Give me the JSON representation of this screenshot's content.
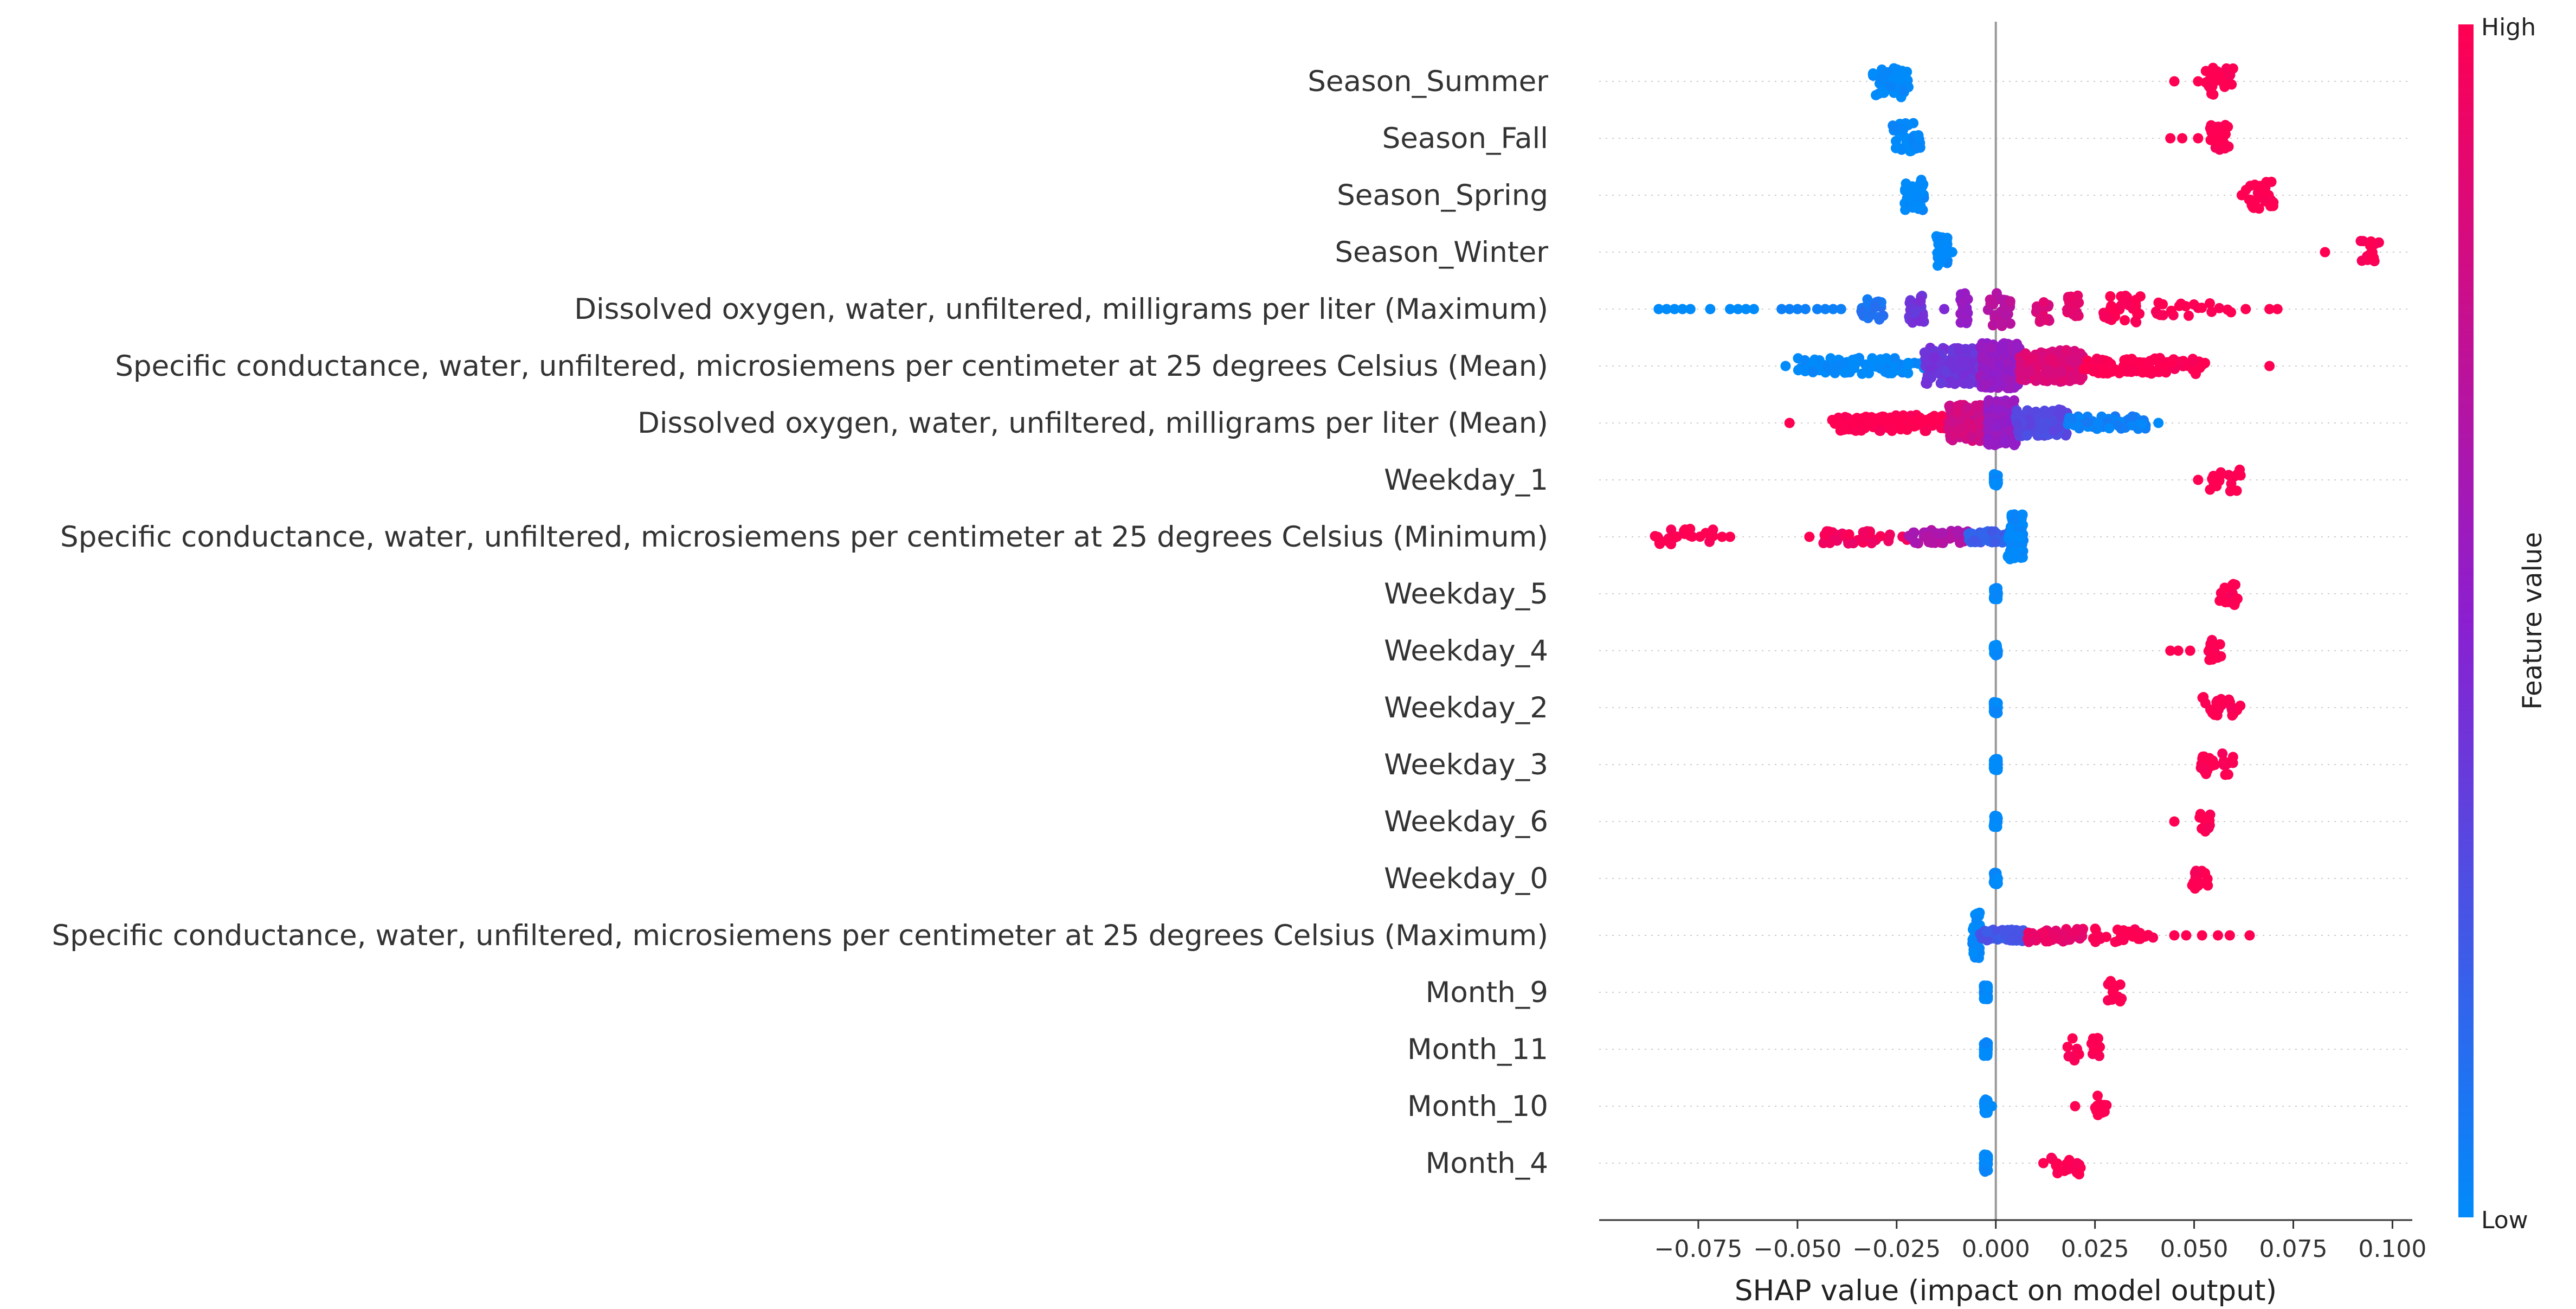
{
  "chart_data": {
    "type": "scatter",
    "subtype": "shap-beeswarm",
    "title": "",
    "xlabel": "SHAP value (impact on model output)",
    "xlim": [
      -0.1,
      0.105
    ],
    "xticks": [
      "−0.075",
      "−0.050",
      "−0.025",
      "0.000",
      "0.025",
      "0.050",
      "0.075",
      "0.100"
    ],
    "xtick_values": [
      -0.075,
      -0.05,
      -0.025,
      0,
      0.025,
      0.05,
      0.075,
      0.1
    ],
    "colorbar": {
      "title": "Feature value",
      "high_label": "High",
      "low_label": "Low",
      "low_color": "#008bfb",
      "high_color": "#ff0052"
    },
    "zero_line": true,
    "features": [
      {
        "name": "Season_Summer",
        "groups": [
          {
            "min": -0.031,
            "max": -0.022,
            "color": 0.0,
            "count": 45,
            "spread": 0.7
          },
          {
            "min": 0.052,
            "max": 0.06,
            "color": 1.0,
            "count": 30,
            "spread": 0.6
          }
        ],
        "points": [
          [
            0.045,
            1.0
          ],
          [
            0.051,
            1.0
          ]
        ]
      },
      {
        "name": "Season_Fall",
        "groups": [
          {
            "min": -0.026,
            "max": -0.019,
            "color": 0.0,
            "count": 42,
            "spread": 0.7
          },
          {
            "min": 0.054,
            "max": 0.059,
            "color": 1.0,
            "count": 25,
            "spread": 0.6
          }
        ],
        "points": [
          [
            0.044,
            1.0
          ],
          [
            0.047,
            1.0
          ],
          [
            0.051,
            1.0
          ]
        ]
      },
      {
        "name": "Season_Spring",
        "groups": [
          {
            "min": -0.023,
            "max": -0.018,
            "color": 0.0,
            "count": 40,
            "spread": 0.7
          },
          {
            "min": 0.063,
            "max": 0.07,
            "color": 1.0,
            "count": 25,
            "spread": 0.6
          }
        ],
        "points": [
          [
            0.062,
            1.0
          ]
        ]
      },
      {
        "name": "Season_Winter",
        "groups": [
          {
            "min": -0.015,
            "max": -0.012,
            "color": 0.0,
            "count": 40,
            "spread": 0.7
          },
          {
            "min": 0.092,
            "max": 0.097,
            "color": 1.0,
            "count": 15,
            "spread": 0.5
          }
        ],
        "points": [
          [
            -0.011,
            0.0
          ],
          [
            0.083,
            1.0
          ]
        ]
      },
      {
        "name": "Dissolved oxygen, water, unfiltered, milligrams per liter (Maximum)",
        "groups": [
          {
            "min": -0.034,
            "max": -0.028,
            "color": 0.1,
            "count": 25,
            "spread": 0.5
          },
          {
            "min": -0.022,
            "max": -0.018,
            "color": 0.4,
            "count": 25,
            "spread": 0.6
          },
          {
            "min": -0.009,
            "max": -0.007,
            "color": 0.55,
            "count": 20,
            "spread": 0.7
          },
          {
            "min": -0.002,
            "max": 0.004,
            "color": 0.7,
            "count": 30,
            "spread": 0.8
          },
          {
            "min": 0.01,
            "max": 0.014,
            "color": 0.85,
            "count": 20,
            "spread": 0.6
          },
          {
            "min": 0.018,
            "max": 0.021,
            "color": 0.9,
            "count": 18,
            "spread": 0.6
          },
          {
            "min": 0.027,
            "max": 0.037,
            "color": 1.0,
            "count": 30,
            "spread": 0.6
          },
          {
            "min": 0.038,
            "max": 0.06,
            "color": 1.0,
            "count": 20,
            "spread": 0.3
          }
        ],
        "points": [
          [
            -0.085,
            0.0
          ],
          [
            -0.083,
            0.0
          ],
          [
            -0.081,
            0.0
          ],
          [
            -0.079,
            0.0
          ],
          [
            -0.077,
            0.0
          ],
          [
            -0.072,
            0.0
          ],
          [
            -0.067,
            0.0
          ],
          [
            -0.065,
            0.0
          ],
          [
            -0.063,
            0.0
          ],
          [
            -0.061,
            0.0
          ],
          [
            -0.054,
            0.05
          ],
          [
            -0.052,
            0.05
          ],
          [
            -0.05,
            0.05
          ],
          [
            -0.048,
            0.05
          ],
          [
            -0.045,
            0.05
          ],
          [
            -0.043,
            0.05
          ],
          [
            -0.041,
            0.05
          ],
          [
            -0.039,
            0.05
          ],
          [
            -0.013,
            0.45
          ],
          [
            0.063,
            1.0
          ],
          [
            0.069,
            1.0
          ],
          [
            0.071,
            1.0
          ]
        ]
      },
      {
        "name": "Specific conductance, water, unfiltered, microsiemens per centimeter at 25 degrees Celsius (Mean)",
        "groups": [
          {
            "min": -0.05,
            "max": -0.018,
            "color": 0.0,
            "count": 90,
            "spread": 0.35
          },
          {
            "min": -0.018,
            "max": -0.004,
            "color": 0.4,
            "count": 160,
            "spread": 0.8
          },
          {
            "min": -0.004,
            "max": 0.006,
            "color": 0.55,
            "count": 200,
            "spread": 1.0
          },
          {
            "min": 0.006,
            "max": 0.022,
            "color": 0.85,
            "count": 130,
            "spread": 0.7
          },
          {
            "min": 0.022,
            "max": 0.054,
            "color": 1.0,
            "count": 90,
            "spread": 0.35
          }
        ],
        "points": [
          [
            -0.053,
            0.0
          ],
          [
            0.069,
            1.0
          ]
        ]
      },
      {
        "name": "Dissolved oxygen, water, unfiltered, milligrams per liter (Mean)",
        "groups": [
          {
            "min": -0.042,
            "max": -0.012,
            "color": 1.0,
            "count": 110,
            "spread": 0.35
          },
          {
            "min": -0.012,
            "max": -0.002,
            "color": 0.8,
            "count": 150,
            "spread": 0.8
          },
          {
            "min": -0.002,
            "max": 0.005,
            "color": 0.55,
            "count": 180,
            "spread": 1.0
          },
          {
            "min": 0.005,
            "max": 0.018,
            "color": 0.3,
            "count": 110,
            "spread": 0.6
          },
          {
            "min": 0.018,
            "max": 0.038,
            "color": 0.05,
            "count": 60,
            "spread": 0.3
          }
        ],
        "points": [
          [
            -0.052,
            1.0
          ],
          [
            0.041,
            0.0
          ]
        ]
      },
      {
        "name": "Weekday_1",
        "groups": [
          {
            "min": -0.0005,
            "max": 0.0005,
            "color": 0.0,
            "count": 60,
            "spread": 0.25
          },
          {
            "min": 0.054,
            "max": 0.062,
            "color": 1.0,
            "count": 20,
            "spread": 0.5
          }
        ],
        "points": [
          [
            0.051,
            1.0
          ]
        ]
      },
      {
        "name": "Specific conductance, water, unfiltered, microsiemens per centimeter at 25 degrees Celsius (Minimum)",
        "groups": [
          {
            "min": -0.086,
            "max": -0.071,
            "color": 1.0,
            "count": 24,
            "spread": 0.35
          },
          {
            "min": -0.044,
            "max": -0.022,
            "color": 0.95,
            "count": 40,
            "spread": 0.3
          },
          {
            "min": -0.022,
            "max": -0.007,
            "color": 0.65,
            "count": 50,
            "spread": 0.3
          },
          {
            "min": -0.007,
            "max": 0.004,
            "color": 0.2,
            "count": 70,
            "spread": 0.25
          },
          {
            "min": 0.003,
            "max": 0.007,
            "color": 0.0,
            "count": 80,
            "spread": 1.0
          }
        ],
        "points": [
          [
            -0.069,
            1.0
          ],
          [
            -0.067,
            1.0
          ],
          [
            -0.047,
            1.0
          ]
        ]
      },
      {
        "name": "Weekday_5",
        "groups": [
          {
            "min": -0.0005,
            "max": 0.0005,
            "color": 0.0,
            "count": 60,
            "spread": 0.25
          },
          {
            "min": 0.056,
            "max": 0.061,
            "color": 1.0,
            "count": 18,
            "spread": 0.5
          }
        ],
        "points": []
      },
      {
        "name": "Weekday_4",
        "groups": [
          {
            "min": -0.0005,
            "max": 0.0005,
            "color": 0.0,
            "count": 60,
            "spread": 0.25
          },
          {
            "min": 0.053,
            "max": 0.057,
            "color": 1.0,
            "count": 14,
            "spread": 0.5
          }
        ],
        "points": [
          [
            0.044,
            1.0
          ],
          [
            0.046,
            1.0
          ],
          [
            0.049,
            1.0
          ]
        ]
      },
      {
        "name": "Weekday_2",
        "groups": [
          {
            "min": -0.0005,
            "max": 0.0005,
            "color": 0.0,
            "count": 60,
            "spread": 0.25
          },
          {
            "min": 0.052,
            "max": 0.062,
            "color": 1.0,
            "count": 26,
            "spread": 0.5
          }
        ],
        "points": []
      },
      {
        "name": "Weekday_3",
        "groups": [
          {
            "min": -0.0005,
            "max": 0.0005,
            "color": 0.0,
            "count": 60,
            "spread": 0.25
          },
          {
            "min": 0.051,
            "max": 0.06,
            "color": 1.0,
            "count": 24,
            "spread": 0.5
          }
        ],
        "points": []
      },
      {
        "name": "Weekday_6",
        "groups": [
          {
            "min": -0.0005,
            "max": 0.0005,
            "color": 0.0,
            "count": 60,
            "spread": 0.25
          },
          {
            "min": 0.051,
            "max": 0.055,
            "color": 1.0,
            "count": 14,
            "spread": 0.5
          }
        ],
        "points": [
          [
            0.045,
            1.0
          ]
        ]
      },
      {
        "name": "Weekday_0",
        "groups": [
          {
            "min": -0.0005,
            "max": 0.0005,
            "color": 0.0,
            "count": 60,
            "spread": 0.25
          },
          {
            "min": 0.049,
            "max": 0.054,
            "color": 1.0,
            "count": 14,
            "spread": 0.5
          }
        ],
        "points": []
      },
      {
        "name": "Specific conductance, water, unfiltered, microsiemens per centimeter at 25 degrees Celsius (Maximum)",
        "groups": [
          {
            "min": -0.006,
            "max": -0.004,
            "color": 0.0,
            "count": 40,
            "spread": 1.0
          },
          {
            "min": -0.004,
            "max": 0.008,
            "color": 0.25,
            "count": 60,
            "spread": 0.25
          },
          {
            "min": 0.008,
            "max": 0.022,
            "color": 0.9,
            "count": 50,
            "spread": 0.3
          },
          {
            "min": 0.022,
            "max": 0.04,
            "color": 1.0,
            "count": 25,
            "spread": 0.3
          }
        ],
        "points": [
          [
            0.045,
            1.0
          ],
          [
            0.048,
            1.0
          ],
          [
            0.052,
            1.0
          ],
          [
            0.056,
            1.0
          ],
          [
            0.059,
            1.0
          ],
          [
            0.064,
            1.0
          ]
        ]
      },
      {
        "name": "Month_9",
        "groups": [
          {
            "min": -0.003,
            "max": -0.002,
            "color": 0.0,
            "count": 50,
            "spread": 0.3
          },
          {
            "min": 0.028,
            "max": 0.032,
            "color": 1.0,
            "count": 14,
            "spread": 0.5
          }
        ],
        "points": []
      },
      {
        "name": "Month_11",
        "groups": [
          {
            "min": -0.003,
            "max": -0.002,
            "color": 0.0,
            "count": 50,
            "spread": 0.3
          },
          {
            "min": 0.018,
            "max": 0.021,
            "color": 1.0,
            "count": 8,
            "spread": 0.5
          },
          {
            "min": 0.024,
            "max": 0.027,
            "color": 1.0,
            "count": 10,
            "spread": 0.5
          }
        ],
        "points": []
      },
      {
        "name": "Month_10",
        "groups": [
          {
            "min": -0.003,
            "max": -0.002,
            "color": 0.0,
            "count": 50,
            "spread": 0.3
          },
          {
            "min": 0.025,
            "max": 0.028,
            "color": 1.0,
            "count": 12,
            "spread": 0.5
          }
        ],
        "points": [
          [
            -0.001,
            0.0
          ],
          [
            0.02,
            1.0
          ]
        ]
      },
      {
        "name": "Month_4",
        "groups": [
          {
            "min": -0.003,
            "max": -0.002,
            "color": 0.0,
            "count": 50,
            "spread": 0.4
          },
          {
            "min": 0.014,
            "max": 0.016,
            "color": 1.0,
            "count": 6,
            "spread": 0.5
          },
          {
            "min": 0.017,
            "max": 0.022,
            "color": 1.0,
            "count": 12,
            "spread": 0.5
          }
        ],
        "points": [
          [
            0.012,
            1.0
          ]
        ]
      }
    ]
  }
}
